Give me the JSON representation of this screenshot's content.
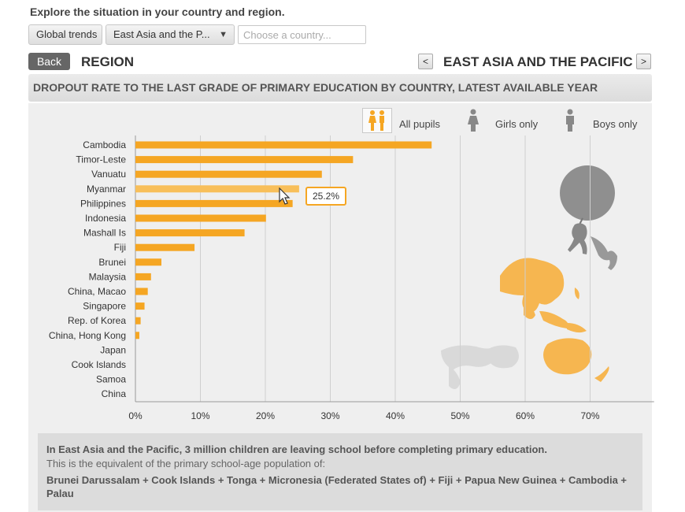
{
  "header": {
    "intro": "Explore the situation in your country and region.",
    "global_trends_label": "Global trends",
    "region_select_value": "East Asia and the P...",
    "country_placeholder": "Choose a country..."
  },
  "nav": {
    "back_label": "Back",
    "level_label": "REGION",
    "prev_label": "<",
    "next_label": ">",
    "region_name": "EAST ASIA AND THE PACIFIC"
  },
  "panel_title": "DROPOUT RATE TO THE LAST GRADE OF PRIMARY EDUCATION BY COUNTRY, LATEST AVAILABLE YEAR",
  "filters": [
    {
      "label": "All pupils",
      "icon": "boy-girl-icon",
      "selected": true
    },
    {
      "label": "Girls only",
      "icon": "girl-icon",
      "selected": false
    },
    {
      "label": "Boys only",
      "icon": "boy-icon",
      "selected": false
    }
  ],
  "tooltip": "25.2%",
  "colors": {
    "bar": "#f5a623",
    "bar_highlight": "#f8bf5a",
    "map": "#f6b650",
    "balloon": "#8f8f8f"
  },
  "chart_data": {
    "type": "bar",
    "orientation": "horizontal",
    "categories": [
      "Cambodia",
      "Timor-Leste",
      "Vanuatu",
      "Myanmar",
      "Philippines",
      "Indonesia",
      "Mashall Is",
      "Fiji",
      "Brunei",
      "Malaysia",
      "China, Macao",
      "Singapore",
      "Rep. of Korea",
      "China, Hong Kong",
      "Japan",
      "Cook Islands",
      "Samoa",
      "China"
    ],
    "values": [
      45.6,
      33.5,
      28.7,
      25.2,
      24.2,
      20.1,
      16.8,
      9.1,
      4.0,
      2.4,
      1.9,
      1.4,
      0.8,
      0.6,
      0,
      0,
      0,
      0
    ],
    "highlighted_category": "Myanmar",
    "xlim": [
      0,
      75
    ],
    "xticks": [
      "0%",
      "10%",
      "20%",
      "30%",
      "40%",
      "50%",
      "60%",
      "70%"
    ],
    "grid": true
  },
  "footer": {
    "line1": "In East Asia and the Pacific, 3 million children are leaving school before completing primary education.",
    "line2": "This is the equivalent of the primary school-age population of:",
    "line3": "Brunei Darussalam + Cook Islands + Tonga + Micronesia (Federated States of) + Fiji + Papua New Guinea + Cambodia + Palau"
  }
}
